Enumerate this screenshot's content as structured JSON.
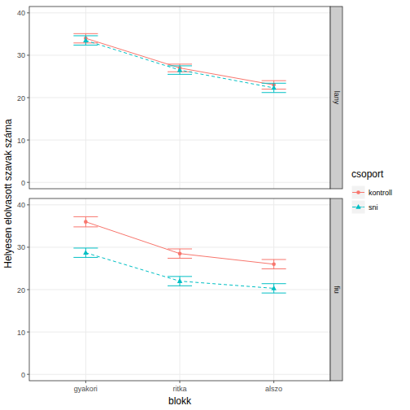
{
  "chart_data": {
    "type": "line",
    "x_label": "blokk",
    "y_label": "Helyesen elolvasott szavak száma",
    "legend_title": "csoport",
    "legend": "right",
    "grid": true,
    "categories": [
      "gyakori",
      "ritka",
      "alszo"
    ],
    "ylim": [
      -1.5,
      41.5
    ],
    "yticks": [
      0,
      10,
      20,
      30,
      40
    ],
    "panels": [
      {
        "title": "lany",
        "series": [
          {
            "name": "kontroll",
            "color": "#F8766D",
            "marker": "circle",
            "line_style": "solid",
            "values": [
              34.0,
              27.0,
              23.0
            ],
            "errors": [
              1.1,
              0.9,
              1.0
            ]
          },
          {
            "name": "sni",
            "color": "#00BFC4",
            "marker": "triangle",
            "line_style": "dashed",
            "values": [
              33.5,
              26.5,
              22.3
            ],
            "errors": [
              1.1,
              1.0,
              1.1
            ]
          }
        ]
      },
      {
        "title": "fiu",
        "series": [
          {
            "name": "kontroll",
            "color": "#F8766D",
            "marker": "circle",
            "line_style": "solid",
            "values": [
              36.0,
              28.5,
              26.0
            ],
            "errors": [
              1.2,
              1.1,
              1.1
            ]
          },
          {
            "name": "sni",
            "color": "#00BFC4",
            "marker": "triangle",
            "line_style": "dashed",
            "values": [
              28.7,
              22.0,
              20.3
            ],
            "errors": [
              1.1,
              1.1,
              1.1
            ]
          }
        ]
      }
    ]
  }
}
